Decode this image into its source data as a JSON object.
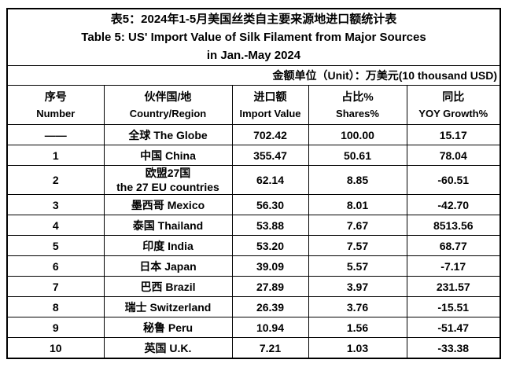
{
  "table": {
    "title_zh": "表5：2024年1-5月美国丝类自主要来源地进口额统计表",
    "title_en_line1": "Table 5: US' Import Value of Silk Filament from Major Sources",
    "title_en_line2": "in Jan.-May 2024",
    "unit_note": "金额单位（Unit）：万美元(10 thousand USD)",
    "columns": [
      {
        "zh": "序号",
        "en": "Number"
      },
      {
        "zh": "伙伴国/地",
        "en": "Country/Region"
      },
      {
        "zh": "进口额",
        "en": "Import Value"
      },
      {
        "zh": "占比%",
        "en": "Shares%"
      },
      {
        "zh": "同比",
        "en": "YOY Growth%"
      }
    ],
    "rows": [
      {
        "number": "——",
        "country": "全球 The Globe",
        "import_value": "702.42",
        "share": "100.00",
        "yoy": "15.17"
      },
      {
        "number": "1",
        "country": "中国 China",
        "import_value": "355.47",
        "share": "50.61",
        "yoy": "78.04"
      },
      {
        "number": "2",
        "country": "欧盟27国\nthe 27 EU countries",
        "import_value": "62.14",
        "share": "8.85",
        "yoy": "-60.51"
      },
      {
        "number": "3",
        "country": "墨西哥 Mexico",
        "import_value": "56.30",
        "share": "8.01",
        "yoy": "-42.70"
      },
      {
        "number": "4",
        "country": "泰国 Thailand",
        "import_value": "53.88",
        "share": "7.67",
        "yoy": "8513.56"
      },
      {
        "number": "5",
        "country": "印度 India",
        "import_value": "53.20",
        "share": "7.57",
        "yoy": "68.77"
      },
      {
        "number": "6",
        "country": "日本 Japan",
        "import_value": "39.09",
        "share": "5.57",
        "yoy": "-7.17"
      },
      {
        "number": "7",
        "country": "巴西 Brazil",
        "import_value": "27.89",
        "share": "3.97",
        "yoy": "231.57"
      },
      {
        "number": "8",
        "country": "瑞士 Switzerland",
        "import_value": "26.39",
        "share": "3.76",
        "yoy": "-15.51"
      },
      {
        "number": "9",
        "country": "秘鲁 Peru",
        "import_value": "10.94",
        "share": "1.56",
        "yoy": "-51.47"
      },
      {
        "number": "10",
        "country": "英国 U.K.",
        "import_value": "7.21",
        "share": "1.03",
        "yoy": "-33.38"
      }
    ]
  },
  "chart_data": {
    "type": "table",
    "title": "表5：2024年1-5月美国丝类自主要来源地进口额统计表 / Table 5: US' Import Value of Silk Filament from Major Sources in Jan.-May 2024",
    "unit": "万美元 (10 thousand USD)",
    "columns": [
      "序号 Number",
      "伙伴国/地 Country/Region",
      "进口额 Import Value",
      "占比% Shares%",
      "同比 YOY Growth%"
    ],
    "rows": [
      [
        "——",
        "全球 The Globe",
        702.42,
        100.0,
        15.17
      ],
      [
        "1",
        "中国 China",
        355.47,
        50.61,
        78.04
      ],
      [
        "2",
        "欧盟27国 the 27 EU countries",
        62.14,
        8.85,
        -60.51
      ],
      [
        "3",
        "墨西哥 Mexico",
        56.3,
        8.01,
        -42.7
      ],
      [
        "4",
        "泰国 Thailand",
        53.88,
        7.67,
        8513.56
      ],
      [
        "5",
        "印度 India",
        53.2,
        7.57,
        68.77
      ],
      [
        "6",
        "日本 Japan",
        39.09,
        5.57,
        -7.17
      ],
      [
        "7",
        "巴西 Brazil",
        27.89,
        3.97,
        231.57
      ],
      [
        "8",
        "瑞士 Switzerland",
        26.39,
        3.76,
        -15.51
      ],
      [
        "9",
        "秘鲁 Peru",
        10.94,
        1.56,
        -51.47
      ],
      [
        "10",
        "英国 U.K.",
        7.21,
        1.03,
        -33.38
      ]
    ]
  }
}
